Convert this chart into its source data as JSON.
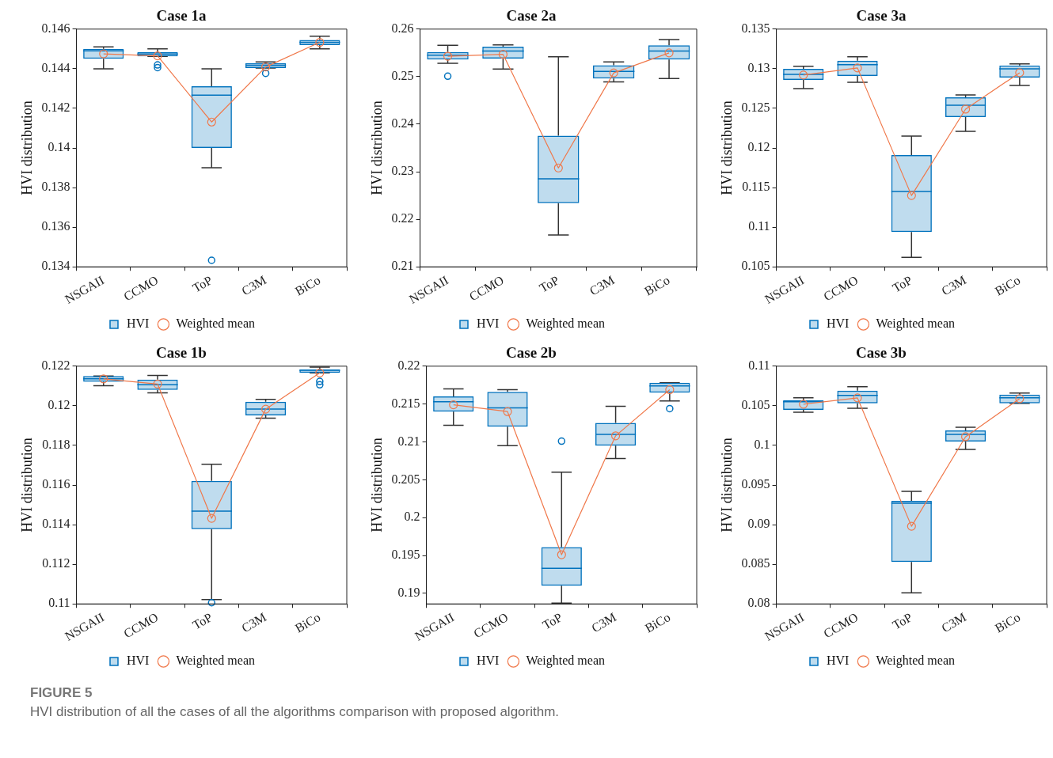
{
  "chart_data": [
    {
      "type": "box",
      "title": "Case 1a",
      "ylabel": "HVI distribution",
      "categories": [
        "NSGAII",
        "CCMO",
        "ToP",
        "C3M",
        "BiCo"
      ],
      "ylim": [
        0.134,
        0.146
      ],
      "yticks": [
        0.134,
        0.136,
        0.138,
        0.14,
        0.142,
        0.144,
        0.146
      ],
      "legend": "bottom",
      "series": [
        {
          "name": "HVI",
          "color": "#0072bd",
          "boxes": [
            {
              "low": 0.144,
              "q1": 0.1445,
              "median": 0.1449,
              "q3": 0.145,
              "high": 0.1451
            },
            {
              "low": 0.14462,
              "q1": 0.14462,
              "median": 0.14474,
              "q3": 0.14484,
              "high": 0.145,
              "outliers": [
                0.14419,
                0.14406
              ]
            },
            {
              "low": 0.139,
              "q1": 0.14,
              "median": 0.14267,
              "q3": 0.14312,
              "high": 0.144,
              "outliers": [
                0.13433
              ]
            },
            {
              "low": 0.14404,
              "q1": 0.14404,
              "median": 0.14417,
              "q3": 0.14428,
              "high": 0.14434,
              "outliers": [
                0.14377
              ]
            },
            {
              "low": 0.145,
              "q1": 0.14519,
              "median": 0.14533,
              "q3": 0.14545,
              "high": 0.14564
            }
          ]
        },
        {
          "name": "Weighted mean",
          "type": "line",
          "color": "#f0784a",
          "marker": "circle",
          "line_style": "solid",
          "values": [
            0.14475,
            0.14465,
            0.14131,
            0.14409,
            0.14533
          ]
        }
      ]
    },
    {
      "type": "box",
      "title": "Case 2a",
      "ylabel": "HVI distribution",
      "categories": [
        "NSGAII",
        "CCMO",
        "ToP",
        "C3M",
        "BiCo"
      ],
      "ylim": [
        0.21,
        0.26
      ],
      "yticks": [
        0.21,
        0.22,
        0.23,
        0.24,
        0.25,
        0.26
      ],
      "legend": "bottom",
      "series": [
        {
          "name": "HVI",
          "color": "#0072bd",
          "boxes": [
            {
              "low": 0.2528,
              "q1": 0.2536,
              "median": 0.2545,
              "q3": 0.2552,
              "high": 0.2566,
              "outliers": [
                0.2501
              ]
            },
            {
              "low": 0.2516,
              "q1": 0.2538,
              "median": 0.2554,
              "q3": 0.2563,
              "high": 0.2567
            },
            {
              "low": 0.2167,
              "q1": 0.2234,
              "median": 0.2285,
              "q3": 0.2376,
              "high": 0.2542
            },
            {
              "low": 0.2489,
              "q1": 0.2496,
              "median": 0.2511,
              "q3": 0.2524,
              "high": 0.2531
            },
            {
              "low": 0.2496,
              "q1": 0.2536,
              "median": 0.2554,
              "q3": 0.2566,
              "high": 0.2578
            }
          ]
        },
        {
          "name": "Weighted mean",
          "type": "line",
          "color": "#f0784a",
          "marker": "circle",
          "line_style": "solid",
          "values": [
            0.2543,
            0.2547,
            0.2308,
            0.2508,
            0.255
          ]
        }
      ]
    },
    {
      "type": "box",
      "title": "Case 3a",
      "ylabel": "HVI distribution",
      "categories": [
        "NSGAII",
        "CCMO",
        "ToP",
        "C3M",
        "BiCo"
      ],
      "ylim": [
        0.105,
        0.135
      ],
      "yticks": [
        0.105,
        0.11,
        0.115,
        0.12,
        0.125,
        0.13,
        0.135
      ],
      "legend": "bottom",
      "series": [
        {
          "name": "HVI",
          "color": "#0072bd",
          "boxes": [
            {
              "low": 0.1275,
              "q1": 0.1286,
              "median": 0.1293,
              "q3": 0.13,
              "high": 0.1303
            },
            {
              "low": 0.1283,
              "q1": 0.1291,
              "median": 0.1305,
              "q3": 0.131,
              "high": 0.1315
            },
            {
              "low": 0.1062,
              "q1": 0.1094,
              "median": 0.1145,
              "q3": 0.1191,
              "high": 0.1215
            },
            {
              "low": 0.1221,
              "q1": 0.1239,
              "median": 0.1254,
              "q3": 0.1264,
              "high": 0.1267
            },
            {
              "low": 0.1279,
              "q1": 0.1289,
              "median": 0.13,
              "q3": 0.1304,
              "high": 0.1306
            }
          ]
        },
        {
          "name": "Weighted mean",
          "type": "line",
          "color": "#f0784a",
          "marker": "circle",
          "line_style": "solid",
          "values": [
            0.1292,
            0.1301,
            0.114,
            0.1249,
            0.1295
          ]
        }
      ]
    },
    {
      "type": "box",
      "title": "Case 1b",
      "ylabel": "HVI distribution",
      "categories": [
        "NSGAII",
        "CCMO",
        "ToP",
        "C3M",
        "BiCo"
      ],
      "ylim": [
        0.11,
        0.122
      ],
      "yticks": [
        0.11,
        0.112,
        0.114,
        0.116,
        0.118,
        0.12,
        0.122
      ],
      "legend": "bottom",
      "series": [
        {
          "name": "HVI",
          "color": "#0072bd",
          "boxes": [
            {
              "low": 0.12101,
              "q1": 0.12121,
              "median": 0.12136,
              "q3": 0.1215,
              "high": 0.1215
            },
            {
              "low": 0.12065,
              "q1": 0.1208,
              "median": 0.12106,
              "q3": 0.12132,
              "high": 0.12153
            },
            {
              "low": 0.11022,
              "q1": 0.11377,
              "median": 0.11468,
              "q3": 0.11621,
              "high": 0.11705,
              "outliers": [
                0.11006
              ]
            },
            {
              "low": 0.11938,
              "q1": 0.11952,
              "median": 0.11984,
              "q3": 0.1202,
              "high": 0.12032
            },
            {
              "low": 0.12166,
              "q1": 0.12166,
              "median": 0.12179,
              "q3": 0.12184,
              "high": 0.12195,
              "outliers": [
                0.12123,
                0.12106
              ]
            }
          ]
        },
        {
          "name": "Weighted mean",
          "type": "line",
          "color": "#f0784a",
          "marker": "circle",
          "line_style": "solid",
          "values": [
            0.12136,
            0.1211,
            0.11432,
            0.11983,
            0.12166
          ]
        }
      ]
    },
    {
      "type": "box",
      "title": "Case 2b",
      "ylabel": "HVI distribution",
      "categories": [
        "NSGAII",
        "CCMO",
        "ToP",
        "C3M",
        "BiCo"
      ],
      "ylim": [
        0.1886,
        0.22
      ],
      "yticks": [
        0.19,
        0.195,
        0.2,
        0.205,
        0.21,
        0.215,
        0.22
      ],
      "legend": "bottom",
      "series": [
        {
          "name": "HVI",
          "color": "#0072bd",
          "boxes": [
            {
              "low": 0.2122,
              "q1": 0.214,
              "median": 0.2153,
              "q3": 0.216,
              "high": 0.217
            },
            {
              "low": 0.2095,
              "q1": 0.212,
              "median": 0.2145,
              "q3": 0.2166,
              "high": 0.2169
            },
            {
              "low": 0.1887,
              "q1": 0.191,
              "median": 0.1933,
              "q3": 0.1961,
              "high": 0.206,
              "outliers": [
                0.2101
              ]
            },
            {
              "low": 0.2078,
              "q1": 0.2095,
              "median": 0.211,
              "q3": 0.2125,
              "high": 0.2147
            },
            {
              "low": 0.2154,
              "q1": 0.2165,
              "median": 0.2174,
              "q3": 0.2178,
              "high": 0.2178,
              "outliers": [
                0.2144
              ]
            }
          ]
        },
        {
          "name": "Weighted mean",
          "type": "line",
          "color": "#f0784a",
          "marker": "circle",
          "line_style": "solid",
          "values": [
            0.2149,
            0.214,
            0.1951,
            0.2108,
            0.2169
          ]
        }
      ]
    },
    {
      "type": "box",
      "title": "Case 3b",
      "ylabel": "HVI distribution",
      "categories": [
        "NSGAII",
        "CCMO",
        "ToP",
        "C3M",
        "BiCo"
      ],
      "ylim": [
        0.08,
        0.11
      ],
      "yticks": [
        0.08,
        0.085,
        0.09,
        0.095,
        0.1,
        0.105,
        0.11
      ],
      "legend": "bottom",
      "annotations": [
        "FIGURE 5",
        "HVI distribution of all the cases of all the algorithms comparison with proposed algorithm."
      ],
      "series": [
        {
          "name": "HVI",
          "color": "#0072bd",
          "boxes": [
            {
              "low": 0.1042,
              "q1": 0.1045,
              "median": 0.1055,
              "q3": 0.1057,
              "high": 0.106
            },
            {
              "low": 0.1047,
              "q1": 0.1053,
              "median": 0.1063,
              "q3": 0.1069,
              "high": 0.1074
            },
            {
              "low": 0.0814,
              "q1": 0.0853,
              "median": 0.0927,
              "q3": 0.093,
              "high": 0.0942
            },
            {
              "low": 0.0995,
              "q1": 0.1005,
              "median": 0.1014,
              "q3": 0.1019,
              "high": 0.1023
            },
            {
              "low": 0.1053,
              "q1": 0.1053,
              "median": 0.106,
              "q3": 0.1064,
              "high": 0.1066
            }
          ]
        },
        {
          "name": "Weighted mean",
          "type": "line",
          "color": "#f0784a",
          "marker": "circle",
          "line_style": "solid",
          "values": [
            0.1052,
            0.106,
            0.0898,
            0.1011,
            0.1059
          ]
        }
      ]
    }
  ]
}
